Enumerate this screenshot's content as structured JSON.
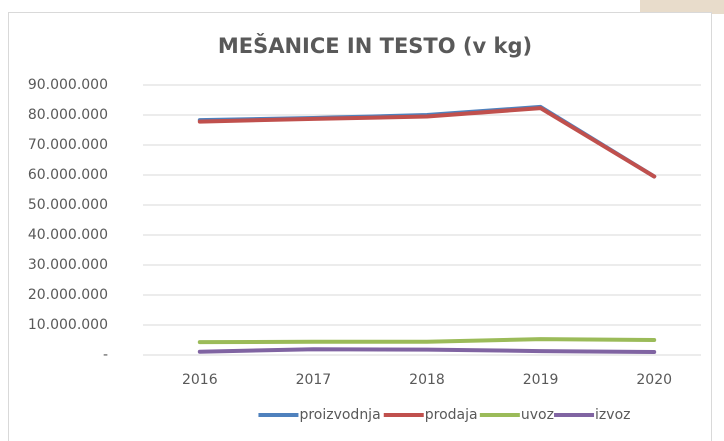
{
  "chart_data": {
    "type": "line",
    "title": "MEŠANICE IN TESTO (v kg)",
    "categories": [
      "2016",
      "2017",
      "2018",
      "2019",
      "2020"
    ],
    "series": [
      {
        "name": "proizvodnja",
        "color": "#4f81bd",
        "values": [
          78300000,
          79000000,
          80000000,
          82700000,
          59500000
        ]
      },
      {
        "name": "prodaja",
        "color": "#c0504d",
        "values": [
          77800000,
          78700000,
          79500000,
          82300000,
          59500000
        ]
      },
      {
        "name": "uvoz",
        "color": "#9bbb59",
        "values": [
          4300000,
          4400000,
          4400000,
          5300000,
          5000000
        ]
      },
      {
        "name": "izvoz",
        "color": "#8064a2",
        "values": [
          1100000,
          1900000,
          1800000,
          1300000,
          1000000
        ]
      }
    ],
    "ylim": [
      0,
      90000000
    ],
    "yticks": [
      {
        "value": 0,
        "label": "-"
      },
      {
        "value": 10000000,
        "label": "10.000.000"
      },
      {
        "value": 20000000,
        "label": "20.000.000"
      },
      {
        "value": 30000000,
        "label": "30.000.000"
      },
      {
        "value": 40000000,
        "label": "40.000.000"
      },
      {
        "value": 50000000,
        "label": "50.000.000"
      },
      {
        "value": 60000000,
        "label": "60.000.000"
      },
      {
        "value": 70000000,
        "label": "70.000.000"
      },
      {
        "value": 80000000,
        "label": "80.000.000"
      },
      {
        "value": 90000000,
        "label": "90.000.000"
      }
    ],
    "grid": true,
    "legend": "bottom"
  }
}
